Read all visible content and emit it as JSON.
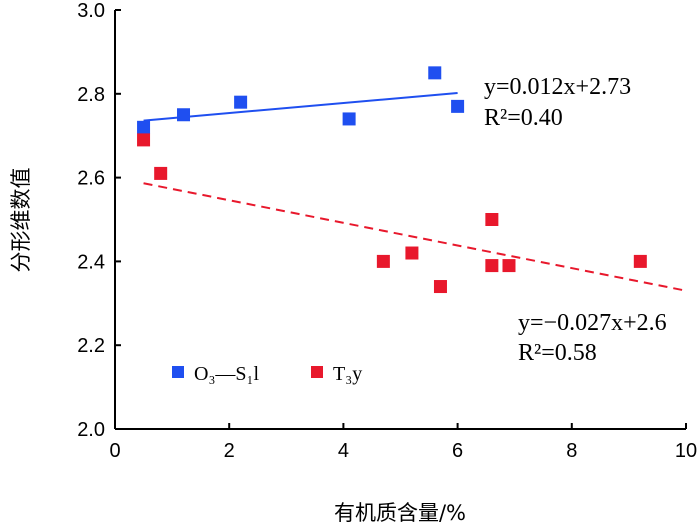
{
  "chart_data": {
    "type": "scatter",
    "title": "",
    "xlabel": "有机质含量/%",
    "ylabel": "分形维数值",
    "xlim": [
      0,
      10
    ],
    "ylim": [
      2.0,
      3.0
    ],
    "xticks": [
      "0",
      "2",
      "4",
      "6",
      "8",
      "10"
    ],
    "yticks": [
      "2.0",
      "2.2",
      "2.4",
      "2.6",
      "2.8",
      "3.0"
    ],
    "grid": false,
    "legend_position": "bottom-left",
    "series": [
      {
        "name": "O₃—S₁l",
        "color": "#1f4ff0",
        "x": [
          0.5,
          1.2,
          2.2,
          4.1,
          5.6,
          6.0
        ],
        "y": [
          2.72,
          2.75,
          2.78,
          2.74,
          2.85,
          2.77
        ],
        "trendline": {
          "slope": 0.012,
          "intercept": 2.73,
          "x_range": [
            0.5,
            6.0
          ],
          "style": "solid",
          "equation": "y=0.012x+2.73",
          "r2": "R²=0.40"
        }
      },
      {
        "name": "T₃y",
        "color": "#e8182c",
        "x": [
          0.5,
          0.8,
          4.7,
          5.2,
          5.7,
          6.6,
          6.6,
          6.9,
          9.2
        ],
        "y": [
          2.69,
          2.61,
          2.4,
          2.42,
          2.34,
          2.5,
          2.39,
          2.39,
          2.4
        ],
        "trendline": {
          "slope": -0.027,
          "intercept": 2.6,
          "x_range": [
            0.5,
            10
          ],
          "style": "dashed",
          "equation": "y=−0.027x+2.6",
          "r2": "R²=0.58"
        }
      }
    ]
  }
}
